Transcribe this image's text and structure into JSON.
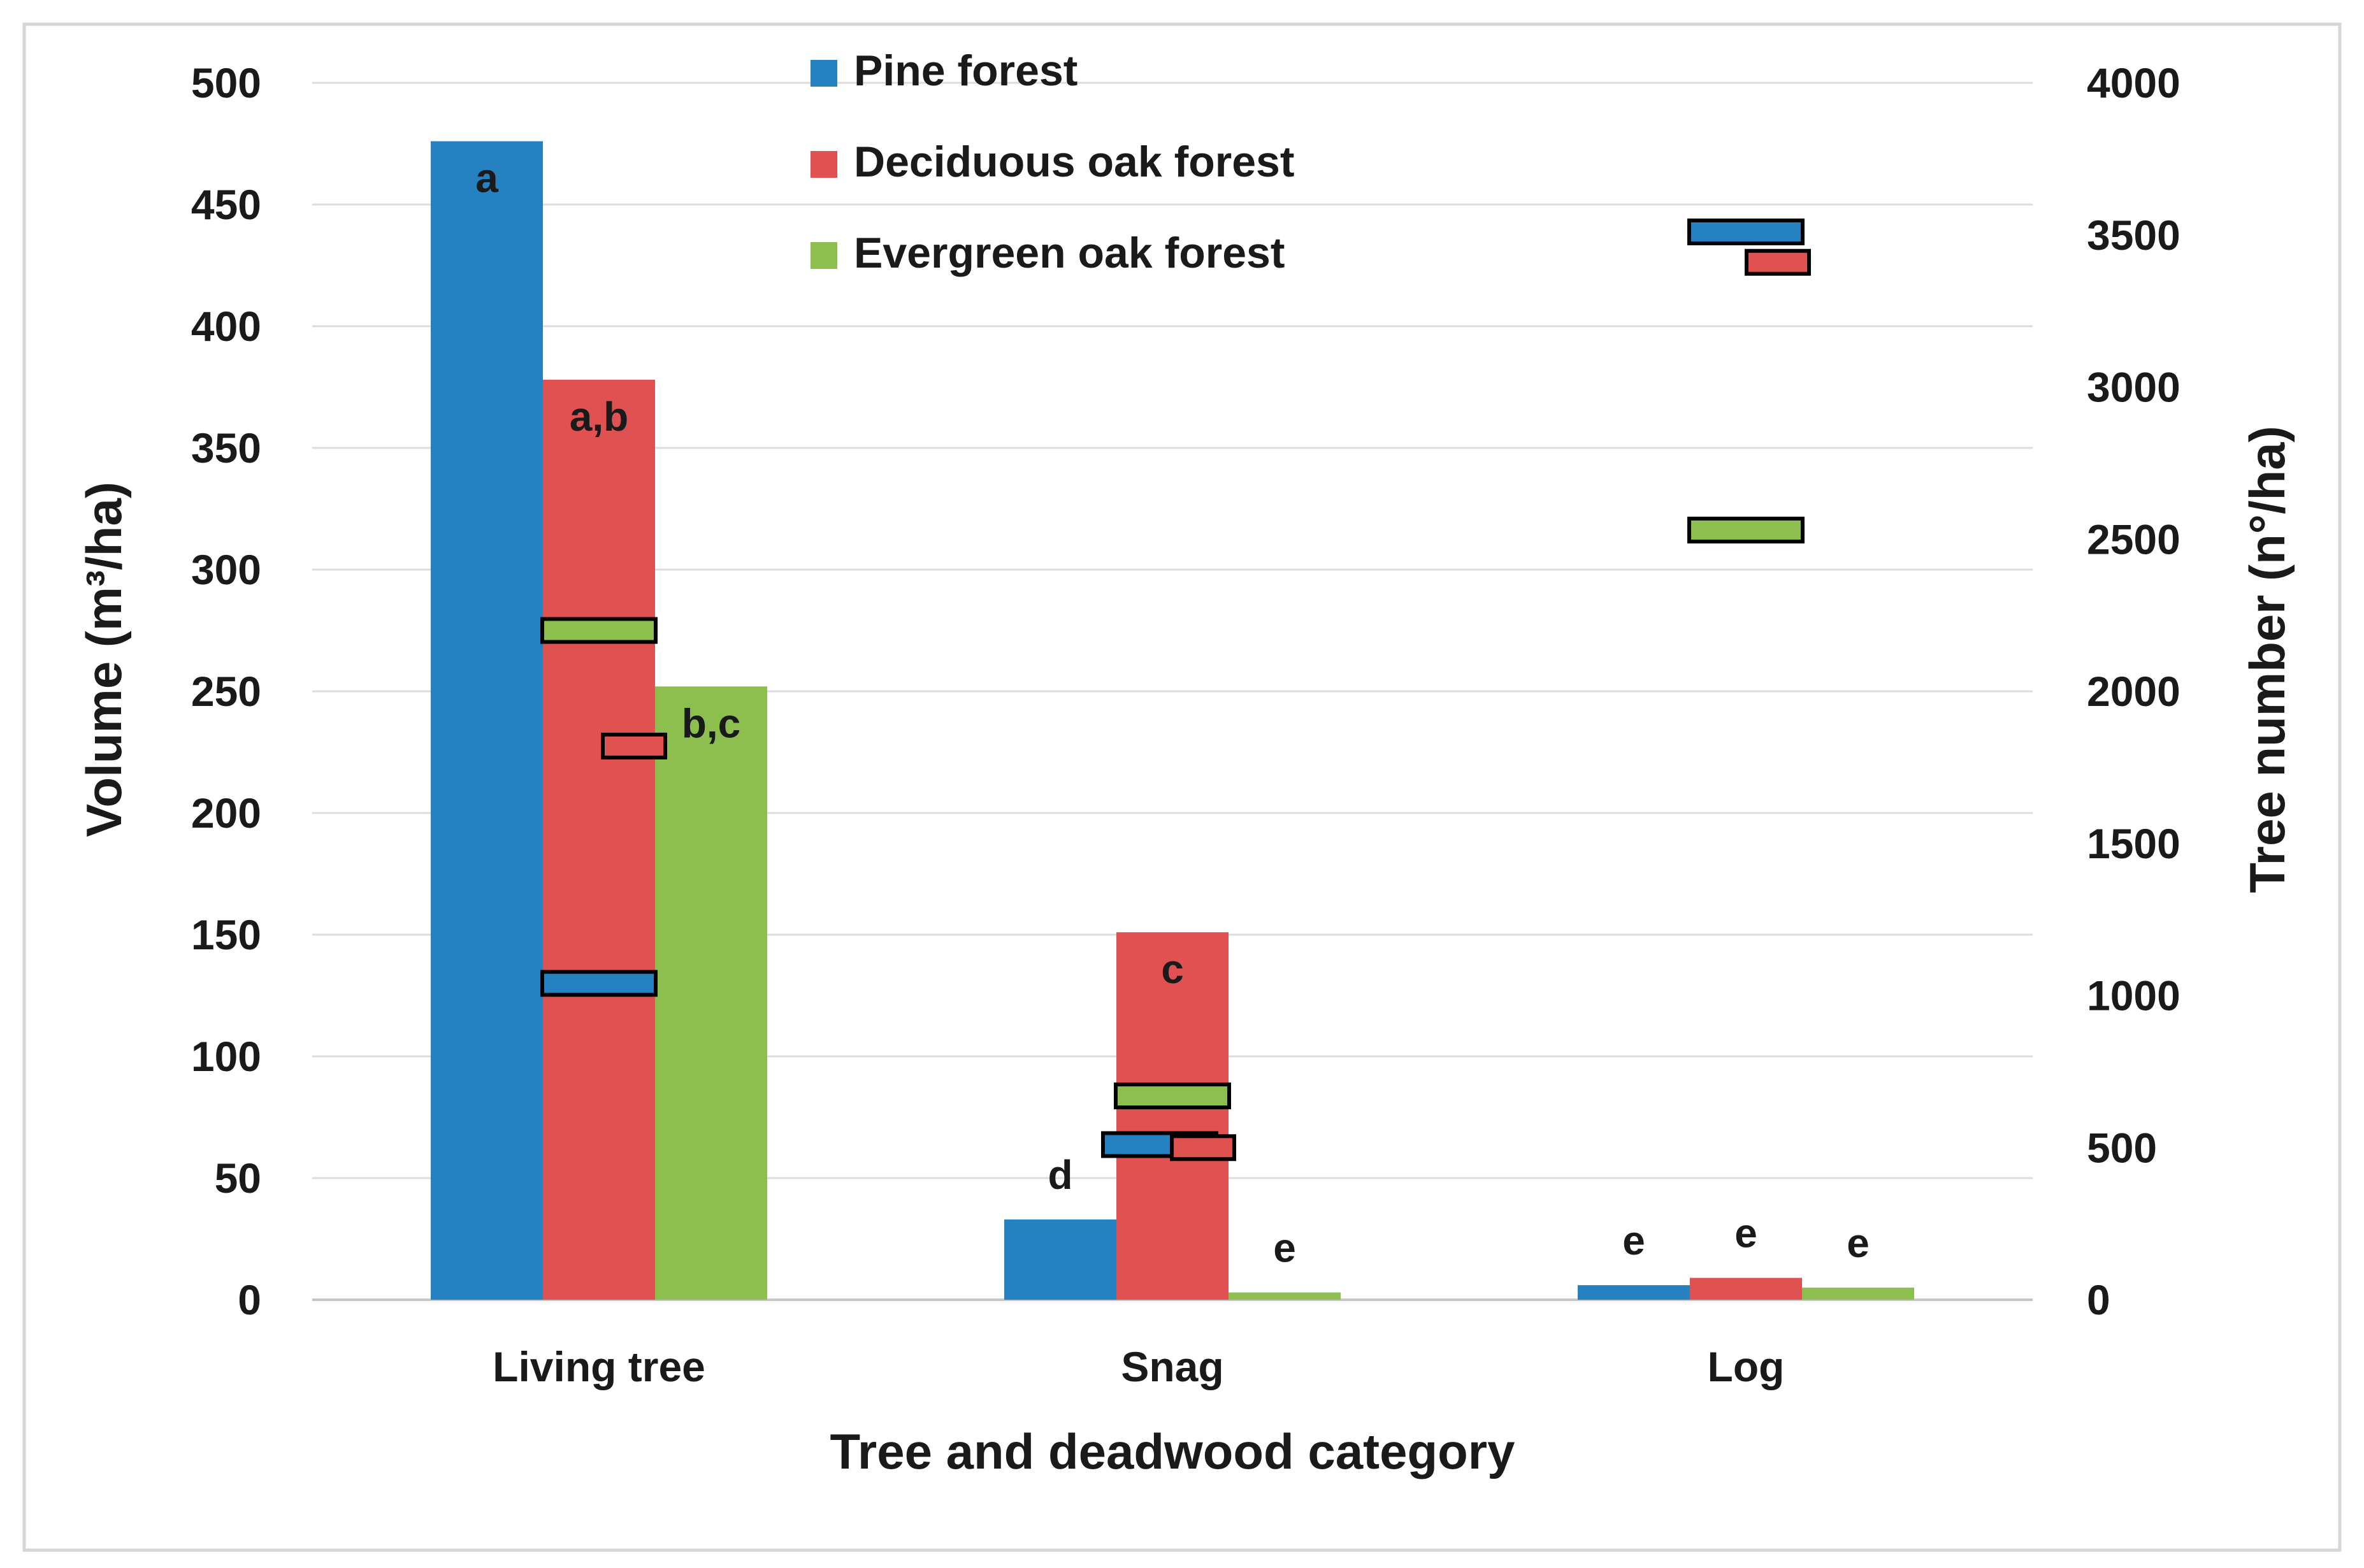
{
  "chart_data": {
    "type": "bar",
    "title": "",
    "xlabel": "Tree and deadwood category",
    "ylabel": "Volume (m³/ha)",
    "ylabel_right": "Tree number (n°/ha)",
    "categories": [
      "Living tree",
      "Snag",
      "Log"
    ],
    "ylim": [
      0,
      500
    ],
    "y_ticks": [
      "0",
      "50",
      "100",
      "150",
      "200",
      "250",
      "300",
      "350",
      "400",
      "450",
      "500"
    ],
    "ylim_right": [
      0,
      4000
    ],
    "y_ticks_right": [
      "0",
      "500",
      "1000",
      "1500",
      "2000",
      "2500",
      "3000",
      "3500",
      "4000"
    ],
    "gridlines": true,
    "legend_position": "top-center",
    "series": [
      {
        "name": "Pine forest",
        "color": "#2681c1",
        "values": [
          476,
          33,
          6
        ],
        "letters": [
          "a",
          "d",
          "e"
        ],
        "tree_number": [
          1040,
          510,
          3510
        ]
      },
      {
        "name": "Deciduous oak forest",
        "color": "#e05151",
        "values": [
          378,
          151,
          9
        ],
        "letters": [
          "a,b",
          "c",
          "e"
        ],
        "tree_number": [
          1820,
          500,
          3410
        ]
      },
      {
        "name": "Evergreen oak forest",
        "color": "#8dbf4e",
        "values": [
          252,
          3,
          5
        ],
        "letters": [
          "b,c",
          "e",
          "e"
        ],
        "tree_number": [
          2200,
          670,
          2530
        ]
      }
    ]
  }
}
